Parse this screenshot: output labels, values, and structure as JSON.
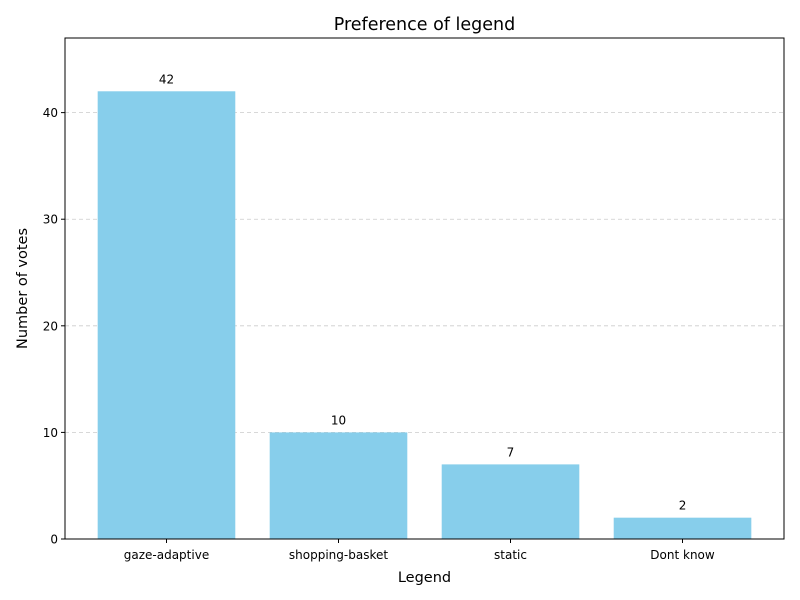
{
  "chart_data": {
    "type": "bar",
    "title": "Preference of legend",
    "xlabel": "Legend",
    "ylabel": "Number of votes",
    "categories": [
      "gaze-adaptive",
      "shopping-basket",
      "static",
      "Dont know"
    ],
    "values": [
      42,
      10,
      7,
      2
    ],
    "ylim": [
      0,
      47
    ],
    "yticks": [
      0,
      10,
      20,
      30,
      40
    ],
    "grid": "y-dashed",
    "bar_color": "#87ceeb"
  }
}
